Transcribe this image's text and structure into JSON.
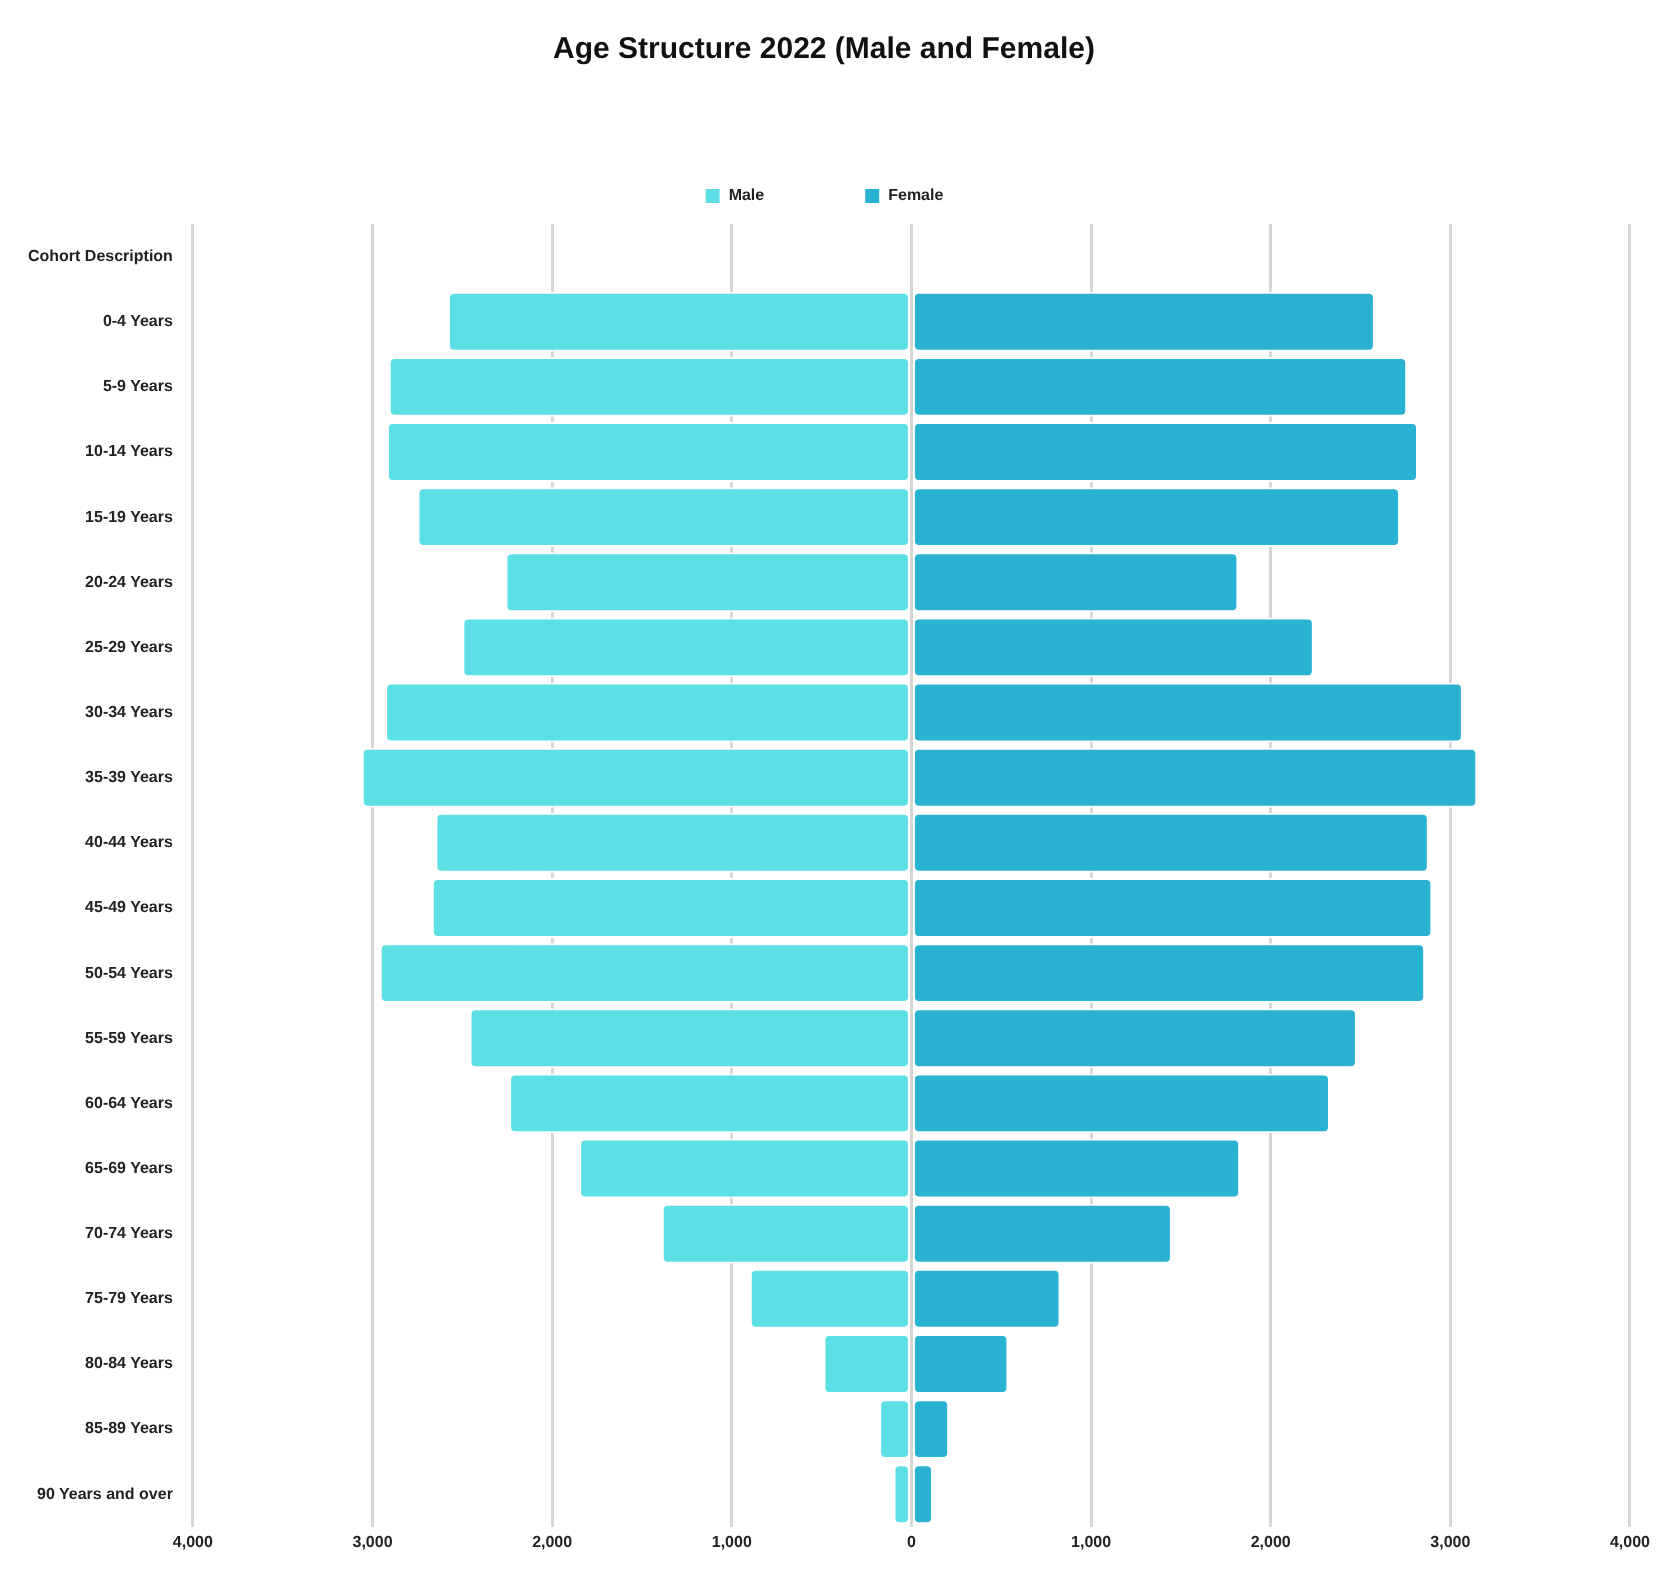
{
  "chart_data": {
    "type": "bar",
    "orientation": "horizontal",
    "stacked": true,
    "title": "Age Structure 2022 (Male and Female)",
    "categories": [
      "Cohort Description",
      "0-4 Years",
      "5-9 Years",
      "10-14 Years",
      "15-19 Years",
      "20-24 Years",
      "25-29 Years",
      "30-34 Years",
      "35-39 Years",
      "40-44 Years",
      "45-49 Years",
      "50-54 Years",
      "55-59 Years",
      "60-64 Years",
      "65-69 Years",
      "70-74 Years",
      "75-79 Years",
      "80-84 Years",
      "85-89 Years",
      "90 Years and over"
    ],
    "series": [
      {
        "name": "Male",
        "color": "#5ce0e6",
        "values": [
          null,
          -2580,
          -2910,
          -2920,
          -2750,
          -2260,
          -2500,
          -2930,
          -3060,
          -2650,
          -2670,
          -2960,
          -2460,
          -2240,
          -1850,
          -1390,
          -900,
          -490,
          -180,
          -100
        ]
      },
      {
        "name": "Female",
        "color": "#2ab2d3",
        "values": [
          null,
          2580,
          2760,
          2820,
          2720,
          1820,
          2240,
          3070,
          3150,
          2880,
          2900,
          2860,
          2480,
          2330,
          1830,
          1450,
          830,
          540,
          210,
          120
        ]
      }
    ],
    "xlim": [
      -4000,
      4000
    ],
    "xticks": [
      {
        "value": -4000,
        "label": "4,000"
      },
      {
        "value": -3000,
        "label": "3,000"
      },
      {
        "value": -2000,
        "label": "2,000"
      },
      {
        "value": -1000,
        "label": "1,000"
      },
      0,
      {
        "value": 1000,
        "label": "1,000"
      },
      {
        "value": 2000,
        "label": "2,000"
      },
      {
        "value": 3000,
        "label": "3,000"
      },
      {
        "value": 4000,
        "label": "4,000"
      }
    ],
    "grid": "x",
    "legend": "top"
  }
}
